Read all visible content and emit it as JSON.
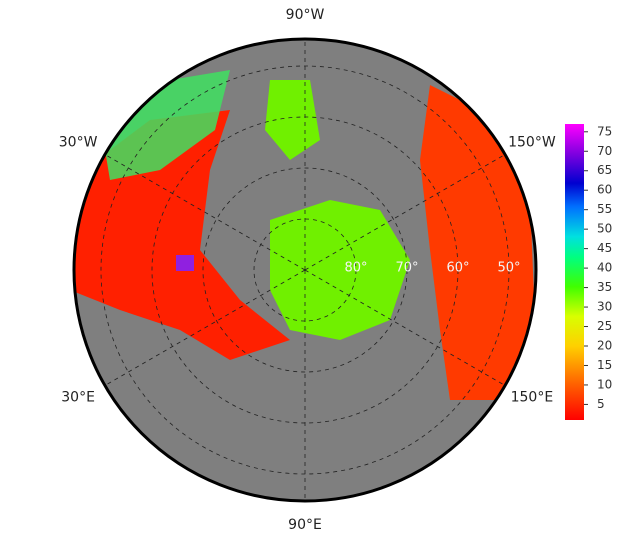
{
  "map": {
    "longitudes": [
      {
        "value": -90,
        "label": "90°W"
      },
      {
        "value": -30,
        "label": "30°W"
      },
      {
        "value": -150,
        "label": "150°W"
      },
      {
        "value": 30,
        "label": "30°E"
      },
      {
        "value": 150,
        "label": "150°E"
      },
      {
        "value": 90,
        "label": "90°E"
      }
    ],
    "latitudes": [
      {
        "value": 80,
        "label": "80°"
      },
      {
        "value": 70,
        "label": "70°"
      },
      {
        "value": 60,
        "label": "60°"
      },
      {
        "value": 50,
        "label": "50°"
      }
    ]
  },
  "colorbar": {
    "lim": [
      1,
      77
    ],
    "ticks": [
      5,
      10,
      15,
      20,
      25,
      30,
      35,
      40,
      45,
      50,
      55,
      60,
      65,
      70,
      75
    ]
  }
}
